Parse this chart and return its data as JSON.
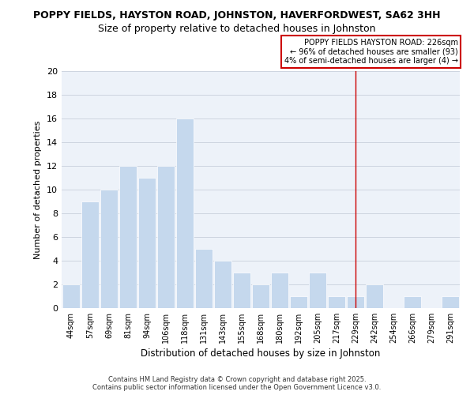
{
  "title": "POPPY FIELDS, HAYSTON ROAD, JOHNSTON, HAVERFORDWEST, SA62 3HH",
  "subtitle": "Size of property relative to detached houses in Johnston",
  "xlabel": "Distribution of detached houses by size in Johnston",
  "ylabel": "Number of detached properties",
  "footer_line1": "Contains HM Land Registry data © Crown copyright and database right 2025.",
  "footer_line2": "Contains public sector information licensed under the Open Government Licence v3.0.",
  "categories": [
    "44sqm",
    "57sqm",
    "69sqm",
    "81sqm",
    "94sqm",
    "106sqm",
    "118sqm",
    "131sqm",
    "143sqm",
    "155sqm",
    "168sqm",
    "180sqm",
    "192sqm",
    "205sqm",
    "217sqm",
    "229sqm",
    "242sqm",
    "254sqm",
    "266sqm",
    "279sqm",
    "291sqm"
  ],
  "values": [
    2,
    9,
    10,
    12,
    11,
    12,
    16,
    5,
    4,
    3,
    2,
    3,
    1,
    3,
    1,
    1,
    2,
    0,
    1,
    0,
    1
  ],
  "bar_color": "#c5d8ed",
  "vline_color": "#cc0000",
  "vline_index": 15,
  "annotation_line1": "POPPY FIELDS HAYSTON ROAD: 226sqm",
  "annotation_line2": "← 96% of detached houses are smaller (93)",
  "annotation_line3": "4% of semi-detached houses are larger (4) →",
  "ylim_max": 20,
  "ytick_step": 2,
  "ax_bg_color": "#edf2f9",
  "grid_color": "#c8d0dc",
  "title_fontsize": 9,
  "subtitle_fontsize": 9
}
